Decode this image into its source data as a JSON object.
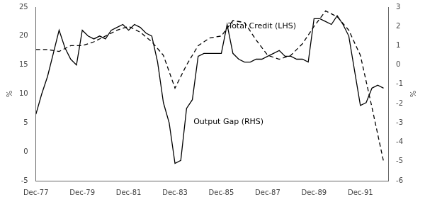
{
  "chart_data": {
    "type": "line",
    "ylabel": "%",
    "y2label": "%",
    "grid": false,
    "xlim": [
      1977,
      1992.2
    ],
    "xticks": [
      {
        "value": 1977,
        "label": "Dec-77"
      },
      {
        "value": 1979,
        "label": "Dec-79"
      },
      {
        "value": 1981,
        "label": "Dec-81"
      },
      {
        "value": 1983,
        "label": "Dec-83"
      },
      {
        "value": 1985,
        "label": "Dec-85"
      },
      {
        "value": 1987,
        "label": "Dec-87"
      },
      {
        "value": 1989,
        "label": "Dec-89"
      },
      {
        "value": 1991,
        "label": "Dec-91"
      }
    ],
    "ylim": [
      -5,
      25
    ],
    "yticks": [
      -5,
      0,
      5,
      10,
      15,
      20,
      25
    ],
    "y2lim": [
      -6,
      3
    ],
    "y2ticks": [
      -6,
      -5,
      -4,
      -3,
      -2,
      -1,
      0,
      1,
      2,
      3
    ],
    "series": [
      {
        "color": "black",
        "line_style": "solid",
        "axis": "y",
        "x": [
          1977.0,
          1977.25,
          1977.5,
          1977.75,
          1978.0,
          1978.25,
          1978.5,
          1978.75,
          1979.0,
          1979.25,
          1979.5,
          1979.75,
          1980.0,
          1980.25,
          1980.5,
          1980.75,
          1981.0,
          1981.25,
          1981.5,
          1981.75,
          1982.0,
          1982.25,
          1982.5,
          1982.75,
          1983.0,
          1983.25,
          1983.5,
          1983.75,
          1984.0,
          1984.25,
          1984.5,
          1984.75,
          1985.0,
          1985.25,
          1985.5,
          1985.75,
          1986.0,
          1986.25,
          1986.5,
          1986.75,
          1987.0,
          1987.25,
          1987.5,
          1987.75,
          1988.0,
          1988.25,
          1988.5,
          1988.75,
          1989.0,
          1989.25,
          1989.5,
          1989.75,
          1990.0,
          1990.25,
          1990.5,
          1990.75,
          1991.0,
          1991.25,
          1991.5,
          1991.75,
          1992.0
        ],
        "values": [
          6.5,
          10.0,
          13.0,
          17.0,
          21.0,
          18.0,
          16.0,
          15.0,
          21.0,
          20.0,
          19.5,
          20.0,
          19.5,
          21.0,
          21.5,
          22.0,
          21.0,
          22.0,
          21.5,
          20.5,
          20.0,
          15.5,
          8.5,
          5.0,
          -2.0,
          -1.5,
          7.5,
          9.0,
          16.5,
          17.0,
          17.0,
          17.0,
          17.0,
          22.0,
          17.0,
          16.0,
          15.5,
          15.5,
          16.0,
          16.0,
          16.5,
          17.0,
          17.5,
          16.5,
          16.5,
          16.0,
          16.0,
          15.5,
          23.0,
          23.0,
          22.5,
          22.0,
          23.5,
          22.0,
          20.0,
          14.0,
          8.0,
          8.5,
          11.0,
          11.5,
          11.0
        ]
      },
      {
        "color": "black",
        "line_style": "dashed",
        "axis": "y2",
        "x": [
          1977.0,
          1977.5,
          1978.0,
          1978.5,
          1979.0,
          1979.5,
          1980.0,
          1980.5,
          1981.0,
          1981.5,
          1982.0,
          1982.5,
          1983.0,
          1983.5,
          1984.0,
          1984.5,
          1985.0,
          1985.5,
          1986.0,
          1986.5,
          1987.0,
          1987.5,
          1988.0,
          1988.5,
          1989.0,
          1989.5,
          1990.0,
          1990.5,
          1991.0,
          1991.5,
          1992.0
        ],
        "values": [
          0.8,
          0.8,
          0.7,
          1.0,
          1.0,
          1.2,
          1.5,
          1.8,
          2.0,
          1.7,
          1.2,
          0.5,
          -1.2,
          0.0,
          1.0,
          1.4,
          1.5,
          2.3,
          2.2,
          1.3,
          0.5,
          0.3,
          0.5,
          1.1,
          2.0,
          2.8,
          2.5,
          1.8,
          0.5,
          -2.2,
          -5.0
        ]
      }
    ],
    "annotations": [
      {
        "text": "Total Credit (LHS)",
        "x": 1985.3,
        "y": 21.0
      },
      {
        "text": "Output Gap (RHS)",
        "x": 1983.8,
        "y": 4.5
      }
    ]
  }
}
